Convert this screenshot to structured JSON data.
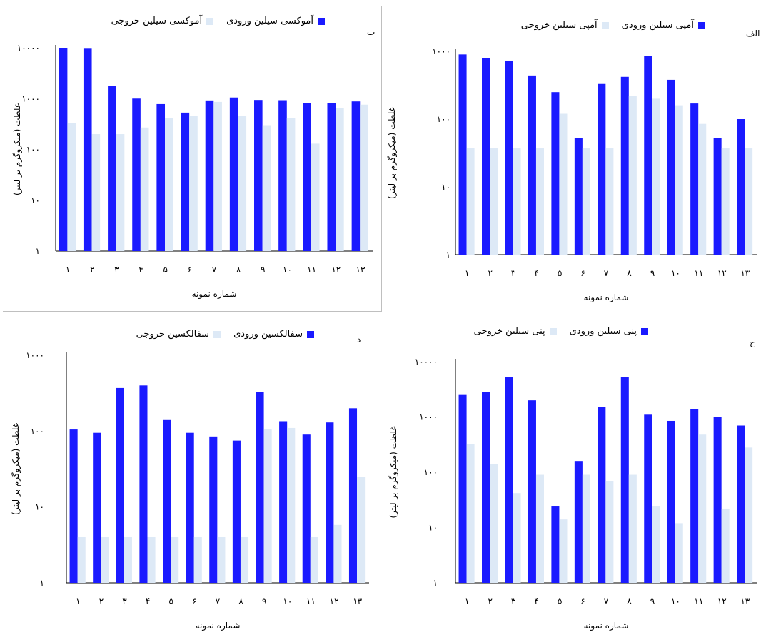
{
  "chart_data": [
    {
      "type": "bar",
      "panel": "الف",
      "categories": [
        "۱",
        "۲",
        "۳",
        "۴",
        "۵",
        "۶",
        "۷",
        "۸",
        "۹",
        "۱۰",
        "۱۱",
        "۱۲",
        "۱۳"
      ],
      "series": [
        {
          "name": "آمپی سیلین ورودی",
          "color": "#1a1aff",
          "values": [
            900,
            800,
            730,
            440,
            250,
            53,
            330,
            420,
            850,
            380,
            170,
            53,
            100
          ]
        },
        {
          "name": "آمپی سیلین خروجی",
          "color": "#dde9f6",
          "values": [
            37,
            37,
            37,
            37,
            120,
            37,
            37,
            220,
            200,
            160,
            85,
            37,
            37
          ]
        }
      ],
      "xlabel": "شماره نمونه",
      "ylabel": "غلظت (میکروگرم بر لیتر)",
      "yscale": "log",
      "ylim": [
        1,
        1000
      ],
      "yticks": [
        "۱",
        "۱۰",
        "۱۰۰",
        "۱۰۰۰"
      ]
    },
    {
      "type": "bar",
      "panel": "ب",
      "categories": [
        "۱",
        "۲",
        "۳",
        "۴",
        "۵",
        "۶",
        "۷",
        "۸",
        "۹",
        "۱۰",
        "۱۱",
        "۱۲",
        "۱۳"
      ],
      "series": [
        {
          "name": "آموکسی سیلین ورودی",
          "color": "#1a1aff",
          "values": [
            10000,
            9900,
            1800,
            1000,
            780,
            530,
            920,
            1050,
            940,
            930,
            810,
            830,
            880
          ]
        },
        {
          "name": "آموکسی سیلین خروجی",
          "color": "#dde9f6",
          "values": [
            330,
            200,
            200,
            270,
            410,
            460,
            860,
            460,
            300,
            420,
            130,
            660,
            760
          ]
        }
      ],
      "xlabel": "شماره نمونه",
      "ylabel": "غلظت (میکروگرم بر لیتر)",
      "yscale": "log",
      "ylim": [
        1,
        10000
      ],
      "yticks": [
        "۱",
        "۱۰",
        "۱۰۰",
        "۱۰۰۰",
        "۱۰۰۰۰"
      ]
    },
    {
      "type": "bar",
      "panel": "ج",
      "categories": [
        "۱",
        "۲",
        "۳",
        "۴",
        "۵",
        "۶",
        "۷",
        "۸",
        "۹",
        "۱۰",
        "۱۱",
        "۱۲",
        "۱۳"
      ],
      "series": [
        {
          "name": "پنی سیلین ورودی",
          "color": "#1a1aff",
          "values": [
            2500,
            2800,
            5200,
            2000,
            24,
            160,
            1500,
            5200,
            1100,
            850,
            1400,
            1000,
            700
          ]
        },
        {
          "name": "پنی سیلین خروجی",
          "color": "#dde9f6",
          "values": [
            320,
            140,
            42,
            90,
            14,
            90,
            70,
            90,
            24,
            12,
            480,
            22,
            280
          ]
        }
      ],
      "xlabel": "شماره نمونه",
      "ylabel": "غلظت (میکروگرم بر لیتر)",
      "yscale": "log",
      "ylim": [
        1,
        10000
      ],
      "yticks": [
        "۱",
        "۱۰",
        "۱۰۰",
        "۱۰۰۰",
        "۱۰۰۰۰"
      ]
    },
    {
      "type": "bar",
      "panel": "د",
      "categories": [
        "۱",
        "۲",
        "۳",
        "۴",
        "۵",
        "۶",
        "۷",
        "۸",
        "۹",
        "۱۰",
        "۱۱",
        "۱۲",
        "۱۳"
      ],
      "series": [
        {
          "name": "سفالکسین ورودی",
          "color": "#1a1aff",
          "values": [
            105,
            95,
            370,
            400,
            140,
            95,
            85,
            75,
            330,
            135,
            90,
            130,
            200
          ]
        },
        {
          "name": "سفالکسین خروجی",
          "color": "#dde9f6",
          "values": [
            4,
            4,
            4,
            4,
            4,
            4,
            4,
            4,
            105,
            110,
            4,
            5.8,
            25
          ]
        }
      ],
      "xlabel": "شماره نمونه",
      "ylabel": "غلظت (میکروگرم بر لیتر)",
      "yscale": "log",
      "ylim": [
        1,
        1000
      ],
      "yticks": [
        "۱",
        "۱۰",
        "۱۰۰",
        "۱۰۰۰"
      ]
    }
  ]
}
